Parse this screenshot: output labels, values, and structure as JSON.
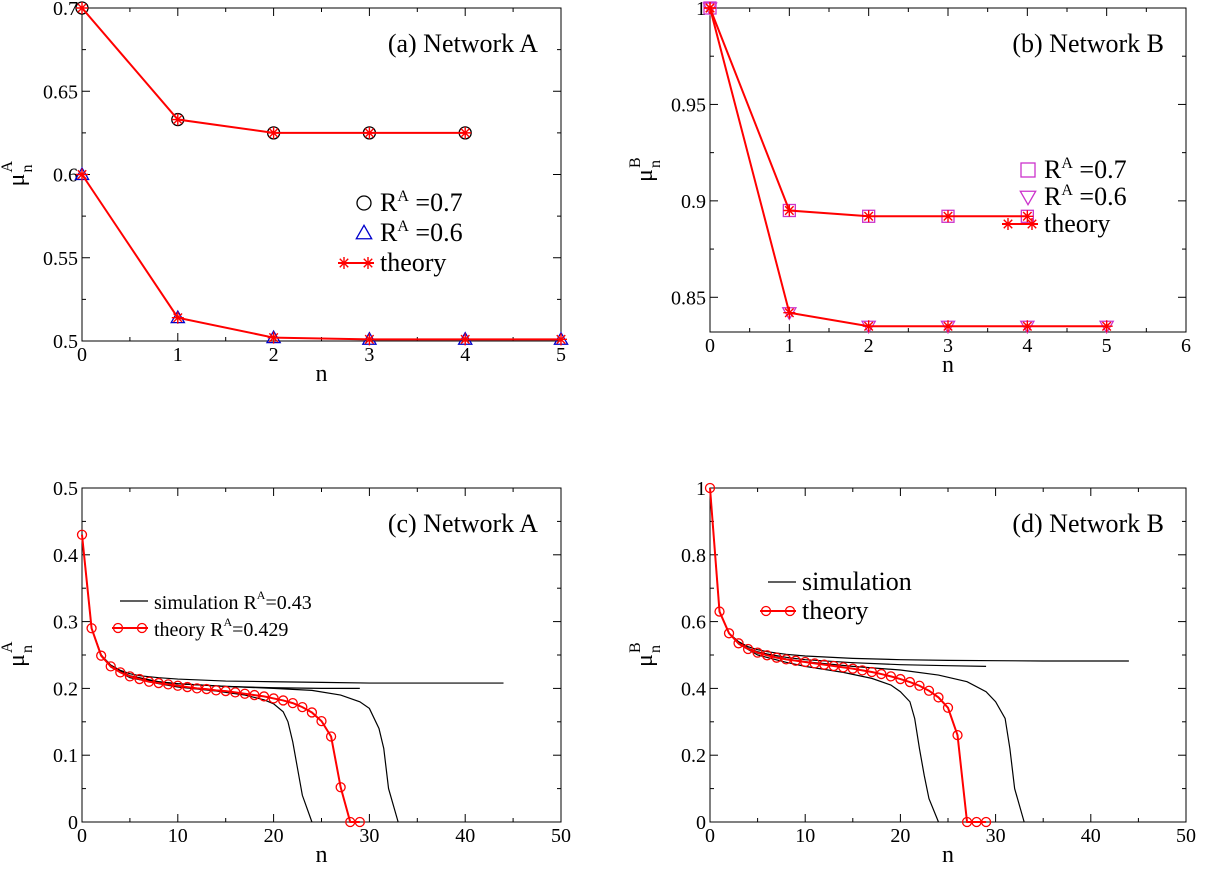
{
  "chart_data": [
    {
      "panel": "a",
      "type": "line",
      "annotation": "(a) Network A",
      "xlabel": "n",
      "ylabel_main": "μ",
      "ylabel_sup": "A",
      "ylabel_sub": "n",
      "xlim": [
        0,
        5
      ],
      "ylim": [
        0.5,
        0.7
      ],
      "xticks": [
        0,
        1,
        2,
        3,
        4,
        5
      ],
      "yticks": [
        0.5,
        0.55,
        0.6,
        0.65,
        0.7
      ],
      "ytick_labels": [
        "0.5",
        "0.55",
        "0.6",
        "0.65",
        "0.7"
      ],
      "legend_position": "right",
      "series": [
        {
          "name": "R^A =0.7",
          "label_main": "R",
          "label_sup": "A",
          "label_rest": " =0.7",
          "marker": "circle",
          "color": "#000000",
          "x": [
            0,
            1,
            2,
            3,
            4
          ],
          "values": [
            0.7,
            0.633,
            0.625,
            0.625,
            0.625
          ]
        },
        {
          "name": "R^A =0.6",
          "label_main": "R",
          "label_sup": "A",
          "label_rest": " =0.6",
          "marker": "triangle-up",
          "color": "#0000cc",
          "x": [
            0,
            1,
            2,
            3,
            4,
            5
          ],
          "values": [
            0.6,
            0.514,
            0.502,
            0.501,
            0.501,
            0.501
          ]
        },
        {
          "name": "theory",
          "label_main": "theory",
          "marker": "star",
          "color": "#ff0000",
          "curves": [
            {
              "x": [
                0,
                1,
                2,
                3,
                4
              ],
              "values": [
                0.7,
                0.633,
                0.625,
                0.625,
                0.625
              ]
            },
            {
              "x": [
                0,
                1,
                2,
                3,
                4,
                5
              ],
              "values": [
                0.6,
                0.514,
                0.502,
                0.501,
                0.501,
                0.501
              ]
            }
          ]
        }
      ]
    },
    {
      "panel": "b",
      "type": "line",
      "annotation": "(b) Network B",
      "xlabel": "n",
      "ylabel_main": "μ",
      "ylabel_sup": "B",
      "ylabel_sub": "n",
      "xlim": [
        0,
        6
      ],
      "ylim": [
        0.832,
        1.0
      ],
      "xticks": [
        0,
        1,
        2,
        3,
        4,
        5,
        6
      ],
      "yticks": [
        0.85,
        0.9,
        0.95,
        1.0
      ],
      "ytick_labels": [
        "0.85",
        "0.9",
        "0.95",
        "1"
      ],
      "legend_position": "right",
      "series": [
        {
          "name": "R^A =0.7",
          "label_main": "R",
          "label_sup": "A",
          "label_rest": " =0.7",
          "marker": "square",
          "color": "#cc33cc",
          "x": [
            0,
            1,
            2,
            3,
            4
          ],
          "values": [
            1.0,
            0.895,
            0.892,
            0.892,
            0.892
          ]
        },
        {
          "name": "R^A =0.6",
          "label_main": "R",
          "label_sup": "A",
          "label_rest": " =0.6",
          "marker": "triangle-down",
          "color": "#cc33cc",
          "x": [
            0,
            1,
            2,
            3,
            4,
            5
          ],
          "values": [
            1.0,
            0.842,
            0.835,
            0.835,
            0.835,
            0.835
          ]
        },
        {
          "name": "theory",
          "label_main": "theory",
          "marker": "star",
          "color": "#ff0000",
          "curves": [
            {
              "x": [
                0,
                1,
                2,
                3,
                4
              ],
              "values": [
                1.0,
                0.895,
                0.892,
                0.892,
                0.892
              ]
            },
            {
              "x": [
                0,
                1,
                2,
                3,
                4,
                5
              ],
              "values": [
                1.0,
                0.842,
                0.835,
                0.835,
                0.835,
                0.835
              ]
            }
          ]
        }
      ]
    },
    {
      "panel": "c",
      "type": "line",
      "annotation": "(c) Network A",
      "xlabel": "n",
      "ylabel_main": "μ",
      "ylabel_sup": "A",
      "ylabel_sub": "n",
      "xlim": [
        0,
        50
      ],
      "ylim": [
        0,
        0.5
      ],
      "xticks": [
        0,
        10,
        20,
        30,
        40,
        50
      ],
      "yticks": [
        0,
        0.1,
        0.2,
        0.3,
        0.4,
        0.5
      ],
      "ytick_labels": [
        "0",
        "0.1",
        "0.2",
        "0.3",
        "0.4",
        "0.5"
      ],
      "legend_position": "center-left",
      "series": [
        {
          "name": "simulation R^A=0.43",
          "label_main": "simulation R",
          "label_sup": "A",
          "label_rest": "=0.43",
          "marker": "none",
          "color": "#000000",
          "curves": [
            {
              "x": [
                0,
                1,
                2,
                3,
                4,
                5,
                6,
                8,
                10,
                15,
                20,
                25,
                30,
                35,
                40,
                44
              ],
              "values": [
                0.43,
                0.29,
                0.25,
                0.235,
                0.227,
                0.222,
                0.219,
                0.216,
                0.214,
                0.211,
                0.21,
                0.209,
                0.208,
                0.208,
                0.208,
                0.208
              ]
            },
            {
              "x": [
                0,
                1,
                2,
                3,
                4,
                5,
                6,
                8,
                10,
                15,
                20,
                25,
                29
              ],
              "values": [
                0.43,
                0.29,
                0.25,
                0.233,
                0.224,
                0.218,
                0.214,
                0.21,
                0.207,
                0.203,
                0.201,
                0.2,
                0.2
              ]
            },
            {
              "x": [
                0,
                1,
                2,
                3,
                5,
                8,
                10,
                15,
                20,
                24,
                27,
                29,
                30,
                31,
                31.5,
                32,
                33
              ],
              "values": [
                0.43,
                0.29,
                0.25,
                0.233,
                0.219,
                0.21,
                0.207,
                0.203,
                0.2,
                0.197,
                0.19,
                0.18,
                0.17,
                0.14,
                0.11,
                0.05,
                0.0
              ]
            },
            {
              "x": [
                0,
                1,
                2,
                3,
                5,
                8,
                10,
                14,
                17,
                19,
                20,
                21,
                21.5,
                22,
                22.5,
                23,
                24
              ],
              "values": [
                0.43,
                0.29,
                0.25,
                0.232,
                0.216,
                0.207,
                0.202,
                0.196,
                0.19,
                0.183,
                0.177,
                0.165,
                0.15,
                0.12,
                0.08,
                0.04,
                0.0
              ]
            }
          ]
        },
        {
          "name": "theory R^A=0.429",
          "label_main": "theory R",
          "label_sup": "A",
          "label_rest": "=0.429",
          "marker": "circle",
          "color": "#ff0000",
          "x": [
            0,
            1,
            2,
            3,
            4,
            5,
            6,
            7,
            8,
            9,
            10,
            11,
            12,
            13,
            14,
            15,
            16,
            17,
            18,
            19,
            20,
            21,
            22,
            23,
            24,
            25,
            26,
            27,
            28,
            29
          ],
          "values": [
            0.43,
            0.29,
            0.249,
            0.233,
            0.224,
            0.218,
            0.214,
            0.21,
            0.208,
            0.206,
            0.204,
            0.202,
            0.2,
            0.199,
            0.197,
            0.196,
            0.194,
            0.192,
            0.19,
            0.188,
            0.185,
            0.182,
            0.178,
            0.172,
            0.164,
            0.151,
            0.128,
            0.052,
            0.0,
            0.0
          ]
        }
      ]
    },
    {
      "panel": "d",
      "type": "line",
      "annotation": "(d) Network B",
      "xlabel": "n",
      "ylabel_main": "μ",
      "ylabel_sup": "B",
      "ylabel_sub": "n",
      "xlim": [
        0,
        50
      ],
      "ylim": [
        0,
        1.0
      ],
      "xticks": [
        0,
        10,
        20,
        30,
        40,
        50
      ],
      "yticks": [
        0,
        0.2,
        0.4,
        0.6,
        0.8,
        1.0
      ],
      "ytick_labels": [
        "0",
        "0.2",
        "0.4",
        "0.6",
        "0.8",
        "1"
      ],
      "legend_position": "center-left",
      "series": [
        {
          "name": "simulation",
          "label_main": "simulation",
          "marker": "none",
          "color": "#000000",
          "curves": [
            {
              "x": [
                0,
                1,
                2,
                3,
                4,
                5,
                6,
                8,
                10,
                15,
                20,
                25,
                30,
                35,
                40,
                44
              ],
              "values": [
                1.0,
                0.63,
                0.565,
                0.54,
                0.525,
                0.516,
                0.51,
                0.502,
                0.497,
                0.49,
                0.486,
                0.484,
                0.483,
                0.482,
                0.482,
                0.482
              ]
            },
            {
              "x": [
                0,
                1,
                2,
                3,
                4,
                5,
                6,
                8,
                10,
                15,
                20,
                25,
                29
              ],
              "values": [
                1.0,
                0.63,
                0.565,
                0.537,
                0.52,
                0.51,
                0.503,
                0.493,
                0.486,
                0.477,
                0.471,
                0.468,
                0.466
              ]
            },
            {
              "x": [
                0,
                1,
                2,
                3,
                5,
                8,
                10,
                15,
                20,
                24,
                27,
                29,
                30,
                31,
                31.5,
                32,
                33
              ],
              "values": [
                1.0,
                0.63,
                0.565,
                0.535,
                0.505,
                0.488,
                0.48,
                0.466,
                0.455,
                0.44,
                0.42,
                0.39,
                0.36,
                0.31,
                0.22,
                0.1,
                0.0
              ]
            },
            {
              "x": [
                0,
                1,
                2,
                3,
                5,
                8,
                10,
                14,
                17,
                19,
                20,
                21,
                21.5,
                22,
                22.5,
                23,
                24
              ],
              "values": [
                1.0,
                0.63,
                0.565,
                0.533,
                0.5,
                0.478,
                0.466,
                0.448,
                0.43,
                0.41,
                0.39,
                0.36,
                0.31,
                0.22,
                0.14,
                0.07,
                0.0
              ]
            }
          ]
        },
        {
          "name": "theory",
          "label_main": "theory",
          "marker": "circle",
          "color": "#ff0000",
          "x": [
            0,
            1,
            2,
            3,
            4,
            5,
            6,
            7,
            8,
            9,
            10,
            11,
            12,
            13,
            14,
            15,
            16,
            17,
            18,
            19,
            20,
            21,
            22,
            23,
            24,
            25,
            26,
            27,
            28,
            29
          ],
          "values": [
            1.0,
            0.63,
            0.565,
            0.535,
            0.518,
            0.507,
            0.499,
            0.492,
            0.487,
            0.483,
            0.479,
            0.475,
            0.471,
            0.467,
            0.463,
            0.459,
            0.454,
            0.449,
            0.443,
            0.436,
            0.428,
            0.419,
            0.408,
            0.393,
            0.373,
            0.342,
            0.26,
            0.0,
            0.0,
            0.0
          ]
        }
      ]
    }
  ]
}
